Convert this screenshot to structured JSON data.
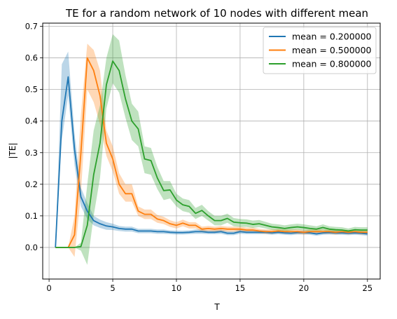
{
  "chart_data": {
    "type": "line",
    "title": "TE for a random network of 10 nodes with different mean",
    "xlabel": "T",
    "ylabel": "|TE|",
    "xlim": [
      -0.5,
      26
    ],
    "ylim": [
      -0.1,
      0.71
    ],
    "xticks": [
      0,
      5,
      10,
      15,
      20,
      25
    ],
    "yticks": [
      0.0,
      0.1,
      0.2,
      0.3,
      0.4,
      0.5,
      0.6,
      0.7
    ],
    "grid": true,
    "legend_position": "top-right",
    "x": [
      0.5,
      1,
      1.5,
      2,
      2.5,
      3,
      3.5,
      4,
      4.5,
      5,
      5.5,
      6,
      6.5,
      7,
      7.5,
      8,
      8.5,
      9,
      9.5,
      10,
      10.5,
      11,
      11.5,
      12,
      12.5,
      13,
      13.5,
      14,
      14.5,
      15,
      15.5,
      16,
      16.5,
      17,
      17.5,
      18,
      18.5,
      19,
      19.5,
      20,
      20.5,
      21,
      21.5,
      22,
      22.5,
      23,
      23.5,
      24,
      24.5,
      25
    ],
    "series": [
      {
        "name": "mean = 0.200000",
        "color": "#1f77b4",
        "values": [
          0.0,
          0.4,
          0.54,
          0.31,
          0.16,
          0.115,
          0.085,
          0.075,
          0.068,
          0.065,
          0.06,
          0.058,
          0.058,
          0.052,
          0.052,
          0.052,
          0.05,
          0.05,
          0.048,
          0.047,
          0.047,
          0.048,
          0.05,
          0.05,
          0.048,
          0.048,
          0.05,
          0.045,
          0.045,
          0.05,
          0.048,
          0.048,
          0.048,
          0.048,
          0.046,
          0.048,
          0.046,
          0.045,
          0.047,
          0.047,
          0.046,
          0.043,
          0.046,
          0.047,
          0.046,
          0.046,
          0.045,
          0.046,
          0.045,
          0.043
        ],
        "lower": [
          0.0,
          0.34,
          0.48,
          0.26,
          0.13,
          0.09,
          0.07,
          0.062,
          0.056,
          0.055,
          0.052,
          0.05,
          0.05,
          0.045,
          0.045,
          0.045,
          0.043,
          0.043,
          0.042,
          0.041,
          0.041,
          0.042,
          0.043,
          0.043,
          0.042,
          0.042,
          0.043,
          0.039,
          0.039,
          0.043,
          0.042,
          0.042,
          0.042,
          0.042,
          0.04,
          0.042,
          0.04,
          0.039,
          0.041,
          0.041,
          0.04,
          0.037,
          0.04,
          0.041,
          0.04,
          0.04,
          0.039,
          0.04,
          0.039,
          0.037
        ],
        "upper": [
          0.0,
          0.58,
          0.62,
          0.36,
          0.19,
          0.14,
          0.1,
          0.088,
          0.08,
          0.075,
          0.068,
          0.066,
          0.066,
          0.059,
          0.059,
          0.059,
          0.057,
          0.057,
          0.054,
          0.053,
          0.053,
          0.054,
          0.057,
          0.057,
          0.054,
          0.054,
          0.057,
          0.051,
          0.051,
          0.057,
          0.054,
          0.054,
          0.054,
          0.054,
          0.052,
          0.054,
          0.052,
          0.051,
          0.053,
          0.053,
          0.052,
          0.049,
          0.052,
          0.053,
          0.052,
          0.052,
          0.051,
          0.052,
          0.051,
          0.049
        ]
      },
      {
        "name": "mean = 0.500000",
        "color": "#ff7f0e",
        "values": [
          0.0,
          0.0,
          0.0,
          0.04,
          0.3,
          0.6,
          0.56,
          0.48,
          0.33,
          0.28,
          0.2,
          0.17,
          0.17,
          0.115,
          0.105,
          0.105,
          0.09,
          0.085,
          0.075,
          0.07,
          0.077,
          0.07,
          0.07,
          0.058,
          0.06,
          0.058,
          0.06,
          0.058,
          0.058,
          0.058,
          0.055,
          0.055,
          0.052,
          0.05,
          0.05,
          0.052,
          0.05,
          0.05,
          0.05,
          0.048,
          0.05,
          0.05,
          0.05,
          0.05,
          0.048,
          0.05,
          0.048,
          0.05,
          0.048,
          0.048
        ],
        "lower": [
          0.0,
          0.0,
          0.0,
          -0.03,
          0.17,
          0.5,
          0.46,
          0.39,
          0.29,
          0.24,
          0.17,
          0.145,
          0.145,
          0.1,
          0.09,
          0.09,
          0.078,
          0.074,
          0.065,
          0.06,
          0.067,
          0.06,
          0.06,
          0.05,
          0.052,
          0.05,
          0.052,
          0.05,
          0.05,
          0.05,
          0.047,
          0.047,
          0.045,
          0.043,
          0.043,
          0.045,
          0.043,
          0.043,
          0.043,
          0.041,
          0.043,
          0.043,
          0.043,
          0.043,
          0.041,
          0.043,
          0.041,
          0.043,
          0.041,
          0.041
        ],
        "upper": [
          0.0,
          0.0,
          0.0,
          0.1,
          0.42,
          0.645,
          0.625,
          0.56,
          0.37,
          0.32,
          0.235,
          0.2,
          0.2,
          0.13,
          0.12,
          0.12,
          0.103,
          0.097,
          0.086,
          0.08,
          0.088,
          0.08,
          0.08,
          0.066,
          0.068,
          0.066,
          0.068,
          0.066,
          0.066,
          0.066,
          0.063,
          0.063,
          0.059,
          0.057,
          0.057,
          0.059,
          0.057,
          0.057,
          0.057,
          0.055,
          0.057,
          0.057,
          0.057,
          0.057,
          0.055,
          0.057,
          0.055,
          0.057,
          0.055,
          0.055
        ]
      },
      {
        "name": "mean = 0.800000",
        "color": "#2ca02c",
        "values": [
          0.0,
          0.0,
          0.0,
          0.0,
          0.003,
          0.07,
          0.23,
          0.33,
          0.515,
          0.59,
          0.56,
          0.47,
          0.4,
          0.375,
          0.28,
          0.275,
          0.22,
          0.18,
          0.182,
          0.15,
          0.135,
          0.13,
          0.108,
          0.117,
          0.1,
          0.085,
          0.085,
          0.092,
          0.08,
          0.078,
          0.077,
          0.073,
          0.075,
          0.07,
          0.065,
          0.063,
          0.06,
          0.063,
          0.065,
          0.063,
          0.06,
          0.058,
          0.063,
          0.058,
          0.056,
          0.055,
          0.052,
          0.056,
          0.055,
          0.055
        ],
        "lower": [
          0.0,
          0.0,
          0.0,
          0.0,
          -0.01,
          -0.055,
          0.1,
          0.22,
          0.44,
          0.52,
          0.49,
          0.41,
          0.34,
          0.32,
          0.235,
          0.23,
          0.185,
          0.15,
          0.155,
          0.13,
          0.115,
          0.11,
          0.09,
          0.1,
          0.085,
          0.07,
          0.07,
          0.078,
          0.067,
          0.065,
          0.065,
          0.062,
          0.064,
          0.06,
          0.055,
          0.054,
          0.051,
          0.054,
          0.056,
          0.054,
          0.051,
          0.05,
          0.054,
          0.05,
          0.048,
          0.047,
          0.045,
          0.048,
          0.047,
          0.047
        ],
        "upper": [
          0.0,
          0.0,
          0.0,
          0.0,
          0.015,
          0.2,
          0.37,
          0.45,
          0.6,
          0.675,
          0.655,
          0.545,
          0.455,
          0.43,
          0.32,
          0.315,
          0.255,
          0.21,
          0.21,
          0.17,
          0.155,
          0.15,
          0.125,
          0.135,
          0.115,
          0.1,
          0.1,
          0.107,
          0.093,
          0.09,
          0.089,
          0.085,
          0.087,
          0.081,
          0.075,
          0.073,
          0.07,
          0.073,
          0.075,
          0.073,
          0.07,
          0.067,
          0.073,
          0.067,
          0.065,
          0.064,
          0.06,
          0.065,
          0.064,
          0.064
        ]
      }
    ]
  }
}
